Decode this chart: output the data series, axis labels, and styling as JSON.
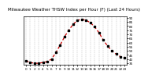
{
  "title": "Milwaukee Weather THSW Index per Hour (F) (Last 24 Hours)",
  "hours": [
    0,
    1,
    2,
    3,
    4,
    5,
    6,
    7,
    8,
    9,
    10,
    11,
    12,
    13,
    14,
    15,
    16,
    17,
    18,
    19,
    20,
    21,
    22,
    23
  ],
  "values": [
    38,
    36,
    35,
    35,
    36,
    37,
    40,
    48,
    57,
    67,
    75,
    82,
    87,
    88,
    87,
    84,
    79,
    72,
    63,
    56,
    50,
    46,
    43,
    42
  ],
  "line_color": "#cc0000",
  "marker_color": "#000000",
  "bg_color": "#ffffff",
  "grid_color": "#999999",
  "title_color": "#000000",
  "ylim": [
    33,
    92
  ],
  "ytick_values": [
    35,
    40,
    45,
    50,
    55,
    60,
    65,
    70,
    75,
    80,
    85,
    90
  ],
  "title_fontsize": 4.0,
  "tick_fontsize": 3.0,
  "line_width": 0.9,
  "marker_size": 1.8
}
